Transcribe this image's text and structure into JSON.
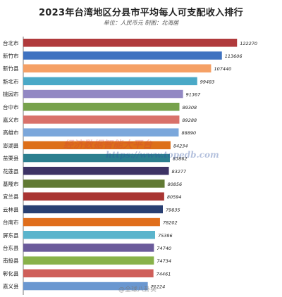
{
  "chart_data": {
    "type": "bar",
    "orientation": "horizontal",
    "title": "2023年台湾地区分县市平均每人可支配收入排行",
    "subtitle": "单位：人民币元  制图：北海居",
    "xlim": [
      0,
      125000
    ],
    "grid": false,
    "legend": "none",
    "categories": [
      "台北市",
      "新竹市",
      "新竹县",
      "新北市",
      "桃园市",
      "台中市",
      "嘉义市",
      "高雄市",
      "澎湖县",
      "苗栗县",
      "花莲县",
      "基隆市",
      "宜兰县",
      "云林县",
      "台南市",
      "屏东县",
      "台东县",
      "南投县",
      "彰化县",
      "嘉义县"
    ],
    "values": [
      122270,
      113606,
      107440,
      99483,
      91367,
      89308,
      89288,
      88890,
      84234,
      83862,
      83277,
      80856,
      80594,
      79835,
      78202,
      75396,
      74740,
      74734,
      74461,
      71224
    ],
    "value_labels": [
      "122270",
      "113606",
      "107440",
      "99483",
      "91367",
      "89308",
      "89288",
      "88890",
      "84234",
      "83862",
      "83277",
      "80856",
      "80594",
      "79835",
      "78202",
      "75396",
      "74740",
      "74734",
      "74461",
      "71224"
    ],
    "bar_colors": [
      "#b03a3c",
      "#3f72c0",
      "#f5a065",
      "#4aa9c7",
      "#9288c3",
      "#77a24c",
      "#d9716a",
      "#7ba7db",
      "#dd6f19",
      "#2c7f8f",
      "#3d3365",
      "#617a34",
      "#a93533",
      "#283f72",
      "#e06e1c",
      "#5ab4cc",
      "#6b5b9b",
      "#88b24a",
      "#cf5f5a",
      "#6a97d0"
    ]
  },
  "watermark": {
    "site_text": "经济数据智能大平台",
    "site_url": "https://www.topedb.com",
    "brand": "@全球八卦实"
  }
}
